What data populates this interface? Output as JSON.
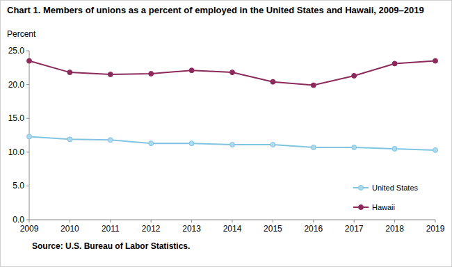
{
  "chart_data": {
    "type": "line",
    "title": "Chart 1. Members of unions as a percent of employed in the United States and Hawaii, 2009–2019",
    "y_label": "Percent",
    "source": "Source: U.S. Bureau of Labor Statistics.",
    "x": [
      2009,
      2010,
      2011,
      2012,
      2013,
      2014,
      2015,
      2016,
      2017,
      2018,
      2019
    ],
    "xlim": [
      2009,
      2019
    ],
    "xticks": [
      2009,
      2010,
      2011,
      2012,
      2013,
      2014,
      2015,
      2016,
      2017,
      2018,
      2019
    ],
    "ylim": [
      0,
      25
    ],
    "yticks": [
      {
        "value": 0,
        "label": "0.0"
      },
      {
        "value": 5,
        "label": "5.0"
      },
      {
        "value": 10,
        "label": "10.0"
      },
      {
        "value": 15,
        "label": "15.0"
      },
      {
        "value": 20,
        "label": "20.0"
      },
      {
        "value": 25,
        "label": "25.0"
      }
    ],
    "grid": false,
    "legend": "lower right",
    "series": [
      {
        "name": "United States",
        "color": "#80c4e2",
        "marker": "circle",
        "line_style": "solid",
        "values": [
          12.3,
          11.9,
          11.8,
          11.3,
          11.3,
          11.1,
          11.1,
          10.7,
          10.7,
          10.5,
          10.3
        ]
      },
      {
        "name": "Hawaii",
        "color": "#8c2a5c",
        "marker": "circle",
        "line_style": "solid",
        "values": [
          23.5,
          21.8,
          21.5,
          21.6,
          22.1,
          21.8,
          20.4,
          19.9,
          21.3,
          23.1,
          23.5
        ]
      }
    ]
  }
}
